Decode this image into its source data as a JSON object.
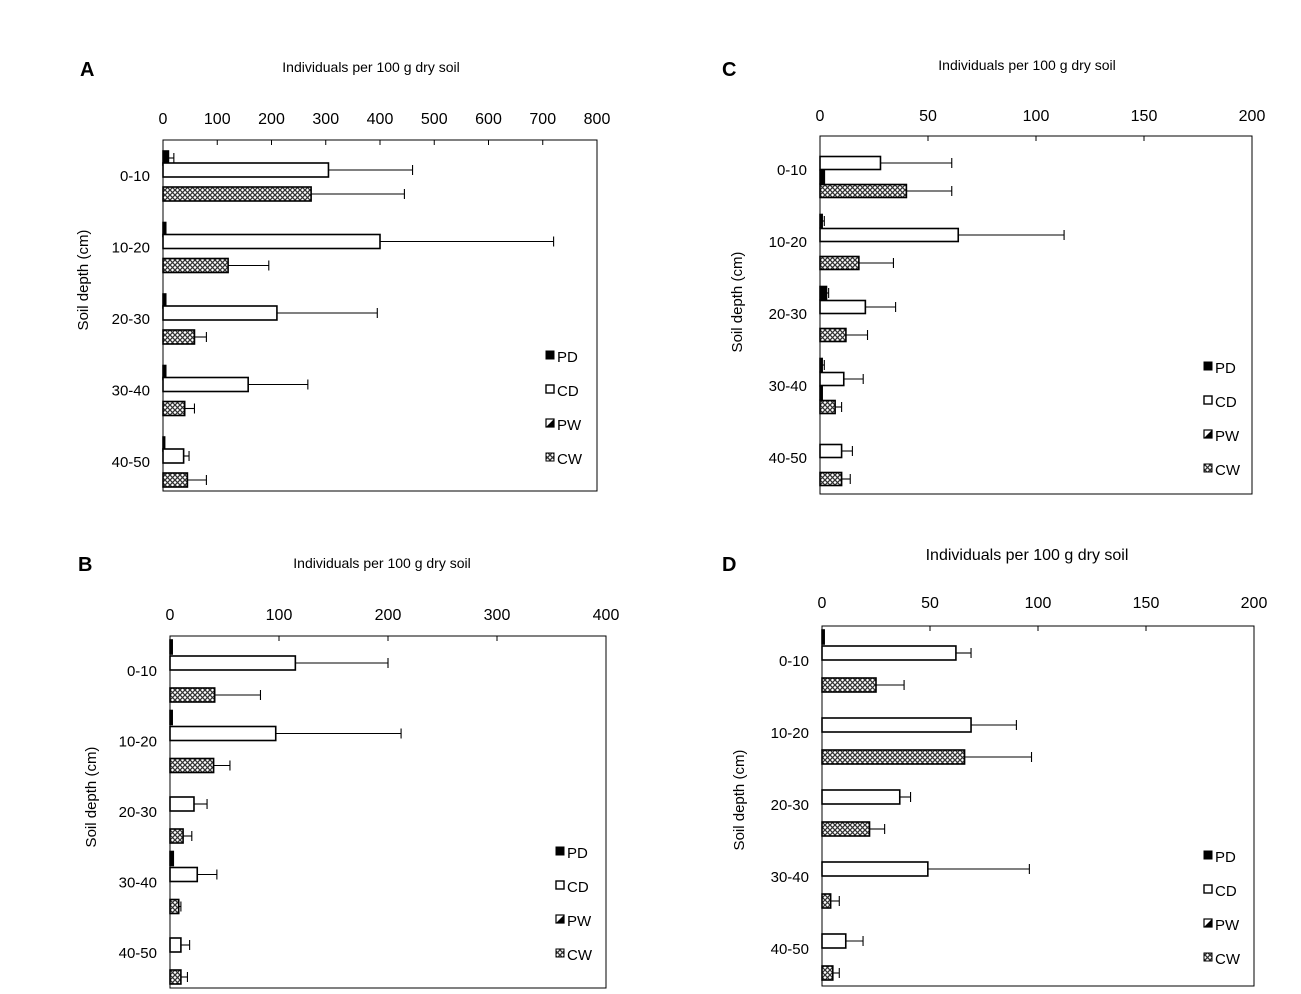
{
  "colors": {
    "PD": "#000000",
    "CD": "#ffffff",
    "PW": "#000000",
    "CW": "#7a7a7a",
    "frame": "#000000"
  },
  "legend_items": [
    "PD",
    "CD",
    "PW",
    "CW"
  ],
  "chart_data": [
    {
      "panel": "A",
      "type": "bar",
      "orientation": "horizontal",
      "title": "Individuals per 100 g dry soil",
      "xlabel": "Individuals per 100 g dry soil",
      "ylabel": "Soil depth (cm)",
      "xlim": [
        0,
        800
      ],
      "xticks": [
        0,
        100,
        200,
        300,
        400,
        500,
        600,
        700,
        800
      ],
      "categories": [
        "0-10",
        "10-20",
        "20-30",
        "30-40",
        "40-50"
      ],
      "series": [
        {
          "name": "PD",
          "values": [
            10,
            5,
            5,
            5,
            3
          ],
          "errors": [
            10,
            0,
            0,
            0,
            0
          ]
        },
        {
          "name": "CD",
          "values": [
            305,
            400,
            210,
            157,
            38
          ],
          "errors": [
            155,
            320,
            185,
            110,
            10
          ]
        },
        {
          "name": "PW",
          "values": [
            0,
            0,
            0,
            0,
            0
          ],
          "errors": [
            0,
            0,
            0,
            0,
            0
          ]
        },
        {
          "name": "CW",
          "values": [
            273,
            120,
            58,
            40,
            45
          ],
          "errors": [
            172,
            75,
            22,
            18,
            35
          ]
        }
      ],
      "legend": "right"
    },
    {
      "panel": "B",
      "type": "bar",
      "orientation": "horizontal",
      "title": "Individuals per 100 g dry soil",
      "xlabel": "Individuals per 100 g dry soil",
      "ylabel": "Soil depth (cm)",
      "xlim": [
        0,
        400
      ],
      "xticks": [
        0,
        100,
        200,
        300,
        400
      ],
      "categories": [
        "0-10",
        "10-20",
        "20-30",
        "30-40",
        "40-50"
      ],
      "series": [
        {
          "name": "PD",
          "values": [
            2,
            2,
            0,
            3,
            0
          ],
          "errors": [
            0,
            0,
            0,
            0,
            0
          ]
        },
        {
          "name": "CD",
          "values": [
            115,
            97,
            22,
            25,
            10
          ],
          "errors": [
            85,
            115,
            12,
            18,
            8
          ]
        },
        {
          "name": "PW",
          "values": [
            0,
            0,
            0,
            0,
            0
          ],
          "errors": [
            0,
            0,
            0,
            0,
            0
          ]
        },
        {
          "name": "CW",
          "values": [
            41,
            40,
            12,
            8,
            10
          ],
          "errors": [
            42,
            15,
            8,
            2,
            6
          ]
        }
      ],
      "legend": "right"
    },
    {
      "panel": "C",
      "type": "bar",
      "orientation": "horizontal",
      "title": "Individuals per 100 g dry soil",
      "xlabel": "Individuals per 100 g dry soil",
      "ylabel": "Soil depth (cm)",
      "xlim": [
        0,
        200
      ],
      "xticks": [
        0,
        50,
        100,
        150,
        200
      ],
      "categories": [
        "0-10",
        "10-20",
        "20-30",
        "30-40",
        "40-50"
      ],
      "series": [
        {
          "name": "PD",
          "values": [
            0,
            1,
            3,
            1,
            0
          ],
          "errors": [
            0,
            1,
            1,
            1,
            0
          ]
        },
        {
          "name": "CD",
          "values": [
            28,
            64,
            21,
            11,
            10
          ],
          "errors": [
            33,
            49,
            14,
            9,
            5
          ]
        },
        {
          "name": "PW",
          "values": [
            2,
            0,
            0,
            1,
            0
          ],
          "errors": [
            0,
            0,
            0,
            0,
            0
          ]
        },
        {
          "name": "CW",
          "values": [
            40,
            18,
            12,
            7,
            10
          ],
          "errors": [
            21,
            16,
            10,
            3,
            4
          ]
        }
      ],
      "legend": "right"
    },
    {
      "panel": "D",
      "type": "bar",
      "orientation": "horizontal",
      "title": "Individuals per 100 g dry soil",
      "xlabel": "Individuals per 100 g dry soil",
      "ylabel": "Soil depth (cm)",
      "xlim": [
        0,
        200
      ],
      "xticks": [
        0,
        50,
        100,
        150,
        200
      ],
      "categories": [
        "0-10",
        "10-20",
        "20-30",
        "30-40",
        "40-50"
      ],
      "series": [
        {
          "name": "PD",
          "values": [
            1,
            0,
            0,
            0,
            0
          ],
          "errors": [
            0,
            0,
            0,
            0,
            0
          ]
        },
        {
          "name": "CD",
          "values": [
            62,
            69,
            36,
            49,
            11
          ],
          "errors": [
            7,
            21,
            5,
            47,
            8
          ]
        },
        {
          "name": "PW",
          "values": [
            0,
            0,
            0,
            0,
            0
          ],
          "errors": [
            0,
            0,
            0,
            0,
            0
          ]
        },
        {
          "name": "CW",
          "values": [
            25,
            66,
            22,
            4,
            5
          ],
          "errors": [
            13,
            31,
            7,
            4,
            3
          ]
        }
      ],
      "legend": "right"
    }
  ]
}
